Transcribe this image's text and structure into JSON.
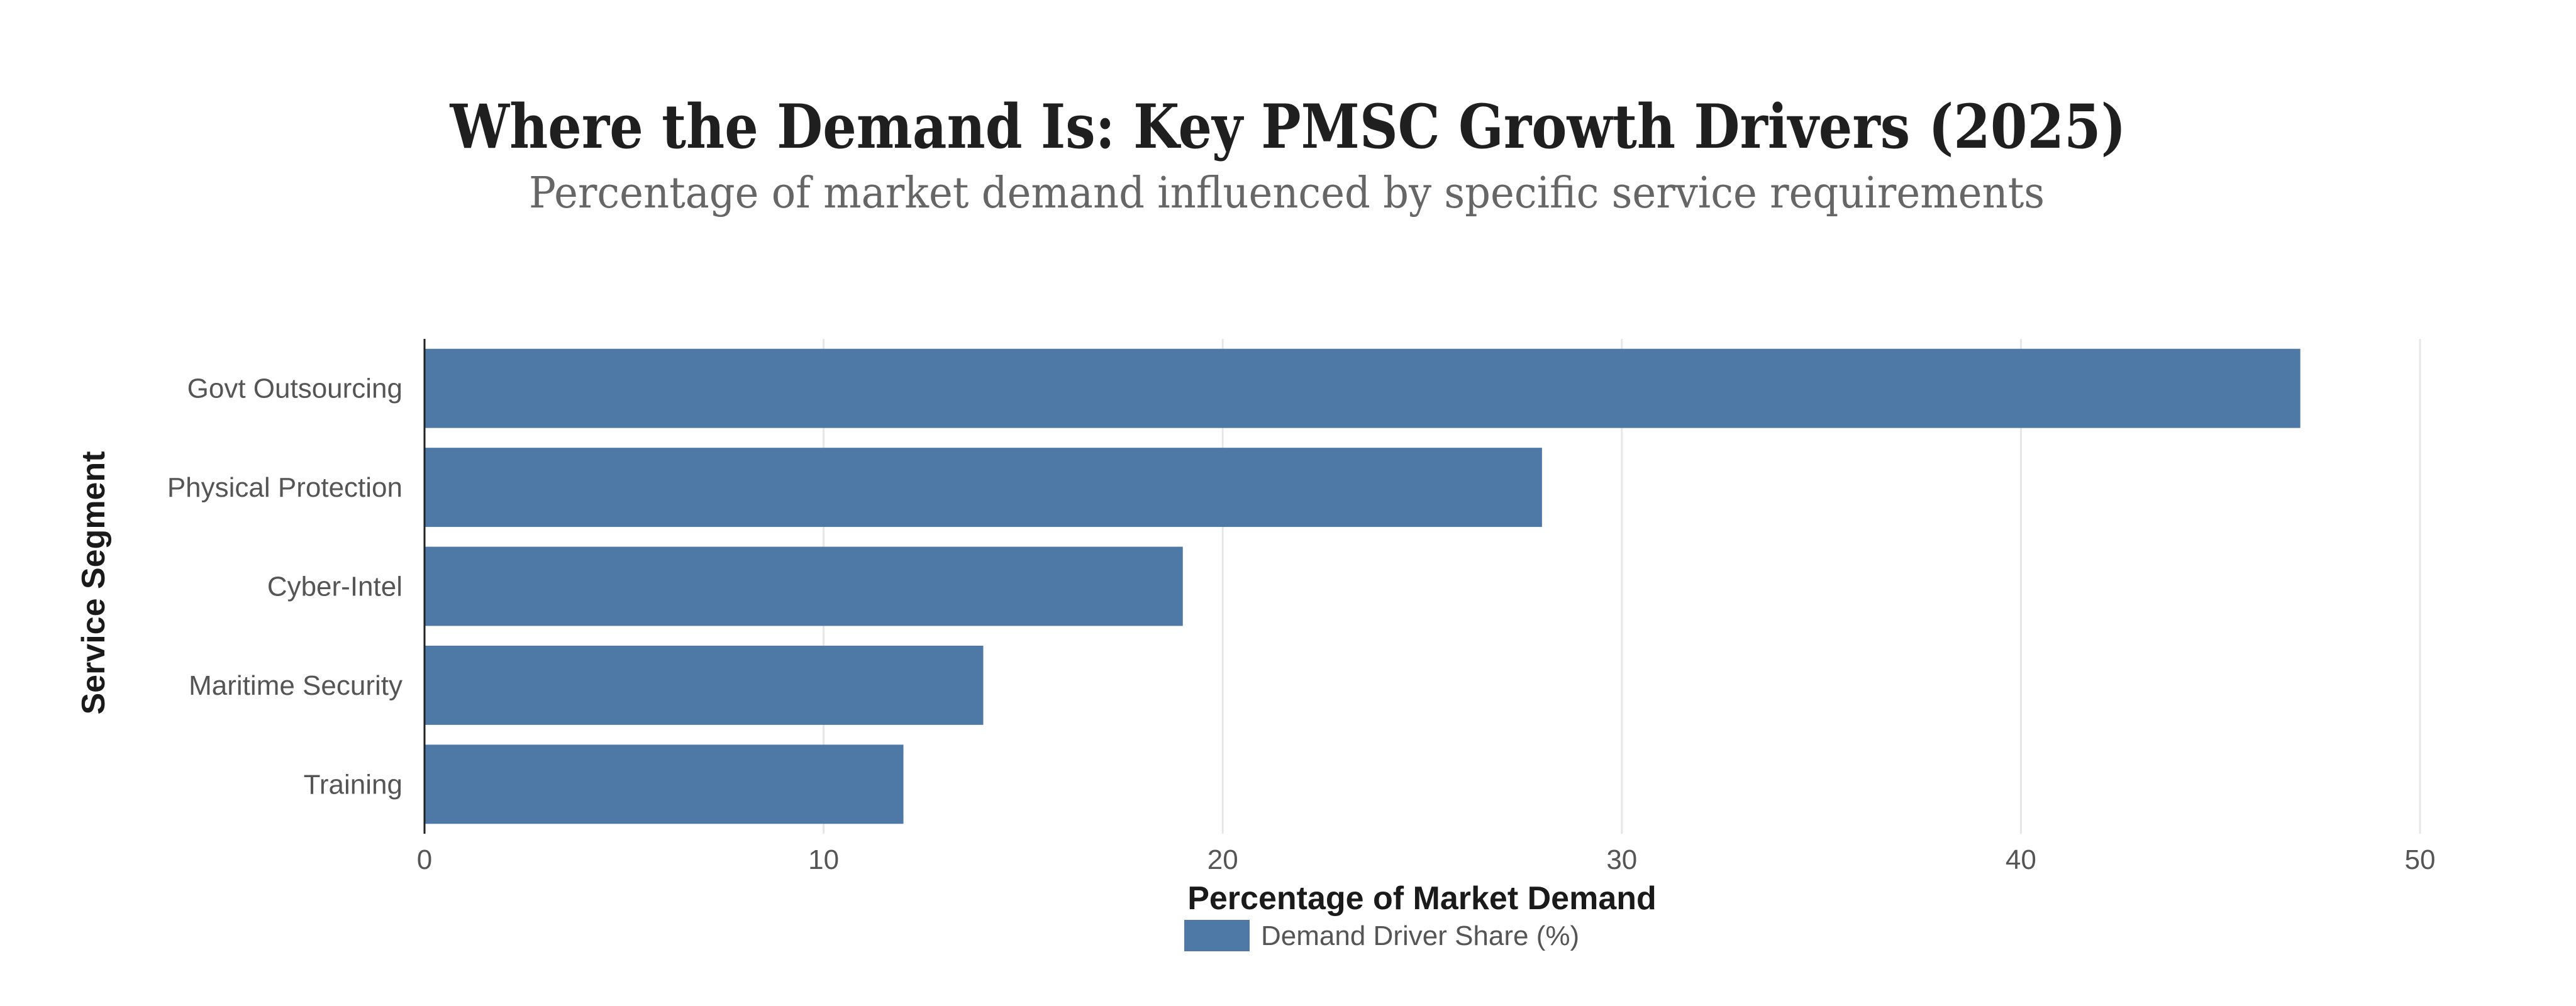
{
  "chart_data": {
    "type": "bar",
    "orientation": "horizontal",
    "title": "Where the Demand Is: Key PMSC Growth Drivers (2025)",
    "subtitle": "Percentage of market demand influenced by specific service requirements",
    "categories": [
      "Govt Outsourcing",
      "Physical Protection",
      "Cyber-Intel",
      "Maritime Security",
      "Training"
    ],
    "series": [
      {
        "name": "Demand Driver Share (%)",
        "values": [
          47,
          28,
          19,
          14,
          12
        ],
        "color": "#4e79a7"
      }
    ],
    "xlabel": "Percentage of Market Demand",
    "ylabel": "Service Segment",
    "xlim": [
      0,
      50
    ],
    "xticks": [
      0,
      10,
      20,
      30,
      40,
      50
    ],
    "grid": true,
    "legend": "bottom-center"
  }
}
